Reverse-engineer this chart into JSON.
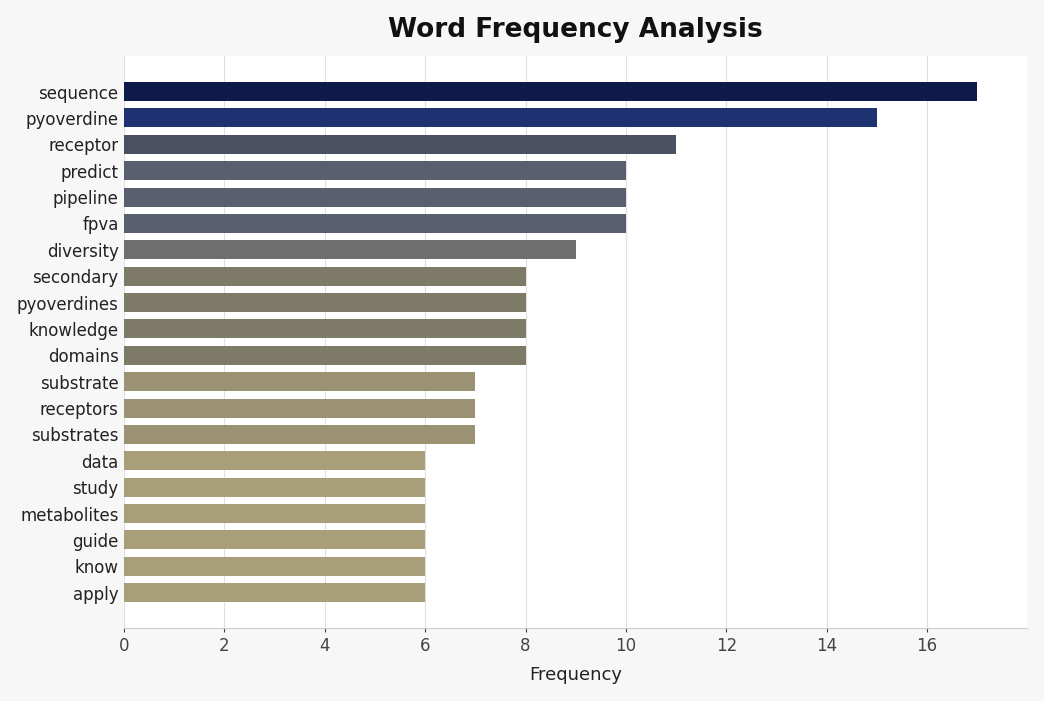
{
  "title": "Word Frequency Analysis",
  "xlabel": "Frequency",
  "categories": [
    "apply",
    "know",
    "guide",
    "metabolites",
    "study",
    "data",
    "substrates",
    "receptors",
    "substrate",
    "domains",
    "knowledge",
    "pyoverdines",
    "secondary",
    "diversity",
    "fpva",
    "pipeline",
    "predict",
    "receptor",
    "pyoverdine",
    "sequence"
  ],
  "values": [
    6,
    6,
    6,
    6,
    6,
    6,
    7,
    7,
    7,
    8,
    8,
    8,
    8,
    9,
    10,
    10,
    10,
    11,
    15,
    17
  ],
  "bar_colors": [
    "#a89f7a",
    "#a89f7a",
    "#a89f7a",
    "#a89f7a",
    "#a89f7a",
    "#a89f7a",
    "#9a9272",
    "#9a9272",
    "#9a9272",
    "#7d7a68",
    "#7d7a68",
    "#7d7a68",
    "#7d7a68",
    "#6e6e6e",
    "#595f6e",
    "#595f6e",
    "#595f6e",
    "#4a4f62",
    "#1e3272",
    "#0d1a4a"
  ],
  "xlim": [
    0,
    18
  ],
  "xticks": [
    0,
    2,
    4,
    6,
    8,
    10,
    12,
    14,
    16
  ],
  "figure_background": "#f7f7f7",
  "plot_background": "#ffffff",
  "title_fontsize": 19,
  "label_fontsize": 13,
  "tick_fontsize": 12,
  "bar_height": 0.72
}
